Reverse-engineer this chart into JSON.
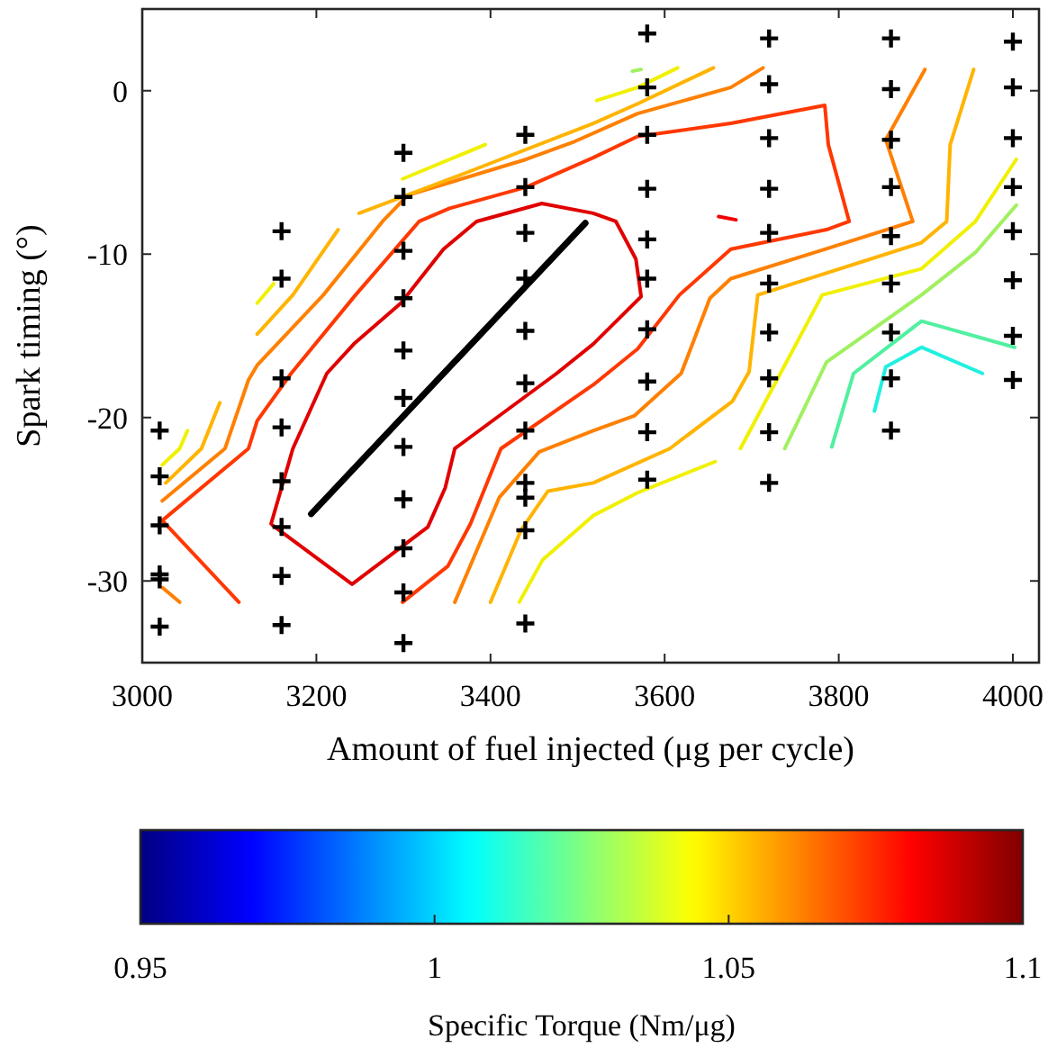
{
  "chart_data": {
    "type": "line",
    "xlabel": "Amount of fuel injected (μg per cycle)",
    "ylabel": "Spark timing (°)",
    "clabel": "Specific Torque (Nm/μg)",
    "xlim": [
      3000,
      4030
    ],
    "ylim": [
      -35,
      5
    ],
    "xticks": [
      3000,
      3200,
      3400,
      3600,
      3800,
      4000
    ],
    "yticks": [
      -30,
      -20,
      -10,
      0
    ],
    "clim": [
      0.95,
      1.1
    ],
    "cticks": [
      0.95,
      1,
      1.05,
      1.1
    ],
    "grid": false,
    "marker": "none",
    "line_style": "solid",
    "series": [
      {
        "color": "#e00000",
        "x": [
          3148,
          3173,
          3212,
          3243,
          3297,
          3346,
          3384,
          3459,
          3518,
          3544,
          3567,
          3573,
          3518,
          3476,
          3359,
          3348,
          3328,
          3241,
          3150
        ],
        "values": [
          -26.5,
          -21.9,
          -17.3,
          -15.5,
          -13.0,
          -9.7,
          -8.0,
          -6.9,
          -7.5,
          -8.0,
          -10.3,
          -12.6,
          -15.5,
          -17.3,
          -21.9,
          -24.3,
          -26.7,
          -30.2,
          -26.6
        ]
      },
      {
        "color": "#f00000",
        "x": [
          3662,
          3682
        ],
        "values": [
          -7.7,
          -7.9
        ]
      },
      {
        "color": "#ff3800",
        "x": [
          3111,
          3023,
          3122,
          3132,
          3171,
          3245,
          3318,
          3353,
          3441,
          3518,
          3569,
          3676,
          3784,
          3788,
          3812,
          3786,
          3676,
          3617,
          3569,
          3518,
          3412,
          3377,
          3351,
          3299
        ],
        "values": [
          -31.3,
          -26.3,
          -21.9,
          -20.2,
          -17.3,
          -12.5,
          -8.0,
          -7.2,
          -5.9,
          -4.1,
          -2.8,
          -2.0,
          -0.9,
          -3.3,
          -8.0,
          -8.5,
          -9.7,
          -12.5,
          -15.8,
          -18.0,
          -21.9,
          -26.5,
          -29.1,
          -31.3
        ]
      },
      {
        "color": "#ff8000",
        "x": [
          3023,
          3043
        ],
        "values": [
          -30.4,
          -31.3
        ]
      },
      {
        "color": "#ff8000",
        "x": [
          3023,
          3095,
          3122,
          3132,
          3208,
          3276,
          3305,
          3441,
          3497,
          3569,
          3676,
          3713
        ],
        "values": [
          -25.1,
          -21.9,
          -17.7,
          -16.8,
          -12.5,
          -8.0,
          -6.4,
          -4.2,
          -3.1,
          -1.4,
          0.2,
          1.4
        ]
      },
      {
        "color": "#ff8000",
        "x": [
          3359,
          3410,
          3456,
          3518,
          3565,
          3619,
          3652,
          3676,
          3784,
          3885,
          3854,
          3899
        ],
        "values": [
          -31.3,
          -24.9,
          -22.1,
          -20.8,
          -19.9,
          -17.3,
          -12.7,
          -11.5,
          -9.7,
          -8.0,
          -3.0,
          1.3
        ]
      },
      {
        "color": "#ffb400",
        "x": [
          3027,
          3068,
          3089
        ],
        "values": [
          -24.0,
          -21.9,
          -19.1
        ]
      },
      {
        "color": "#ffb400",
        "x": [
          3132,
          3173,
          3225
        ],
        "values": [
          -14.9,
          -12.5,
          -8.5
        ]
      },
      {
        "color": "#ffb400",
        "x": [
          3249,
          3373,
          3518,
          3569,
          3656
        ],
        "values": [
          -7.5,
          -5.0,
          -2.0,
          -0.8,
          1.4
        ]
      },
      {
        "color": "#ffb400",
        "x": [
          3400,
          3435,
          3466,
          3518,
          3606,
          3678,
          3697,
          3707,
          3895,
          3924,
          3928,
          3955
        ],
        "values": [
          -31.3,
          -26.9,
          -24.5,
          -24.0,
          -21.9,
          -19.0,
          -17.2,
          -12.5,
          -9.3,
          -8.0,
          -3.3,
          1.3
        ]
      },
      {
        "color": "#f0f000",
        "x": [
          3023,
          3043,
          3052
        ],
        "values": [
          -22.9,
          -21.9,
          -20.8
        ]
      },
      {
        "color": "#f0f000",
        "x": [
          3132,
          3151
        ],
        "values": [
          -13.0,
          -11.8
        ]
      },
      {
        "color": "#f0f000",
        "x": [
          3299,
          3394,
          3400,
          3522,
          3569,
          3615
        ],
        "values": [
          -5.4,
          -3.3,
          null,
          -0.6,
          0.2,
          1.4
        ]
      },
      {
        "color": "#f0f000",
        "x": [
          3433,
          3460,
          3518,
          3569,
          3658
        ],
        "values": [
          -31.3,
          -28.7,
          -26.0,
          -24.6,
          -22.7
        ]
      },
      {
        "color": "#f0f000",
        "x": [
          3687,
          3781,
          3895,
          3957,
          4004
        ],
        "values": [
          -21.9,
          -12.5,
          -10.9,
          -8.0,
          -4.2
        ]
      },
      {
        "color": "#a0f060",
        "x": [
          3738,
          3786,
          3895,
          3957,
          4004
        ],
        "values": [
          -21.9,
          -16.6,
          -12.5,
          -9.9,
          -7.0
        ]
      },
      {
        "color": "#a0f060",
        "x": [
          3563,
          3573
        ],
        "values": [
          1.2,
          1.3
        ]
      },
      {
        "color": "#50f0a0",
        "x": [
          3792,
          3817,
          3895,
          4002
        ],
        "values": [
          -21.8,
          -17.3,
          -14.1,
          -15.7
        ]
      },
      {
        "color": "#20f0e0",
        "x": [
          3841,
          3854,
          3895,
          3965
        ],
        "values": [
          -19.6,
          -16.9,
          -15.7,
          -17.3
        ]
      },
      {
        "color": "#000000",
        "x": [
          3194,
          3509
        ],
        "values": [
          -25.9,
          -8.1
        ]
      },
      {
        "type": "scatter",
        "marker": "cross",
        "color": "#000000",
        "x": [
          3020,
          3020,
          3020,
          3020,
          3020,
          3020,
          3160,
          3160,
          3160,
          3160,
          3160,
          3160,
          3160,
          3160,
          3300,
          3300,
          3300,
          3300,
          3300,
          3300,
          3300,
          3300,
          3300,
          3300,
          3300,
          3440,
          3440,
          3440,
          3440,
          3440,
          3440,
          3440,
          3440,
          3440,
          3440,
          3440,
          3580,
          3580,
          3580,
          3580,
          3580,
          3580,
          3580,
          3580,
          3580,
          3580,
          3720,
          3720,
          3720,
          3720,
          3720,
          3720,
          3720,
          3720,
          3720,
          3720,
          3860,
          3860,
          3860,
          3860,
          3860,
          3860,
          3860,
          3860,
          3860,
          4000,
          4000,
          4000,
          4000,
          4000,
          4000,
          4000,
          4000
        ],
        "values": [
          -20.8,
          -23.6,
          -26.6,
          -29.6,
          -29.9,
          -32.8,
          -8.6,
          -11.5,
          -17.6,
          -20.6,
          -23.9,
          -26.7,
          -29.7,
          -32.7,
          -3.8,
          -6.5,
          -9.8,
          -12.7,
          -15.9,
          -18.8,
          -21.8,
          -25.0,
          -28.0,
          -30.7,
          -33.8,
          -2.7,
          -5.9,
          -8.7,
          -11.5,
          -14.7,
          -17.9,
          -20.8,
          -24.0,
          -24.9,
          -26.9,
          -32.6,
          3.5,
          0.2,
          -2.7,
          -6.0,
          -9.1,
          -11.5,
          -14.6,
          -17.8,
          -20.9,
          -23.8,
          3.2,
          0.4,
          -2.9,
          -6.0,
          -8.7,
          -11.8,
          -14.8,
          -17.6,
          -20.9,
          -24.0,
          3.2,
          0.1,
          -3.0,
          -5.9,
          -8.9,
          -11.8,
          -14.8,
          -17.6,
          -20.8,
          3.0,
          0.2,
          -2.9,
          -5.9,
          -8.6,
          -11.6,
          -15.0,
          -17.7
        ]
      }
    ]
  }
}
